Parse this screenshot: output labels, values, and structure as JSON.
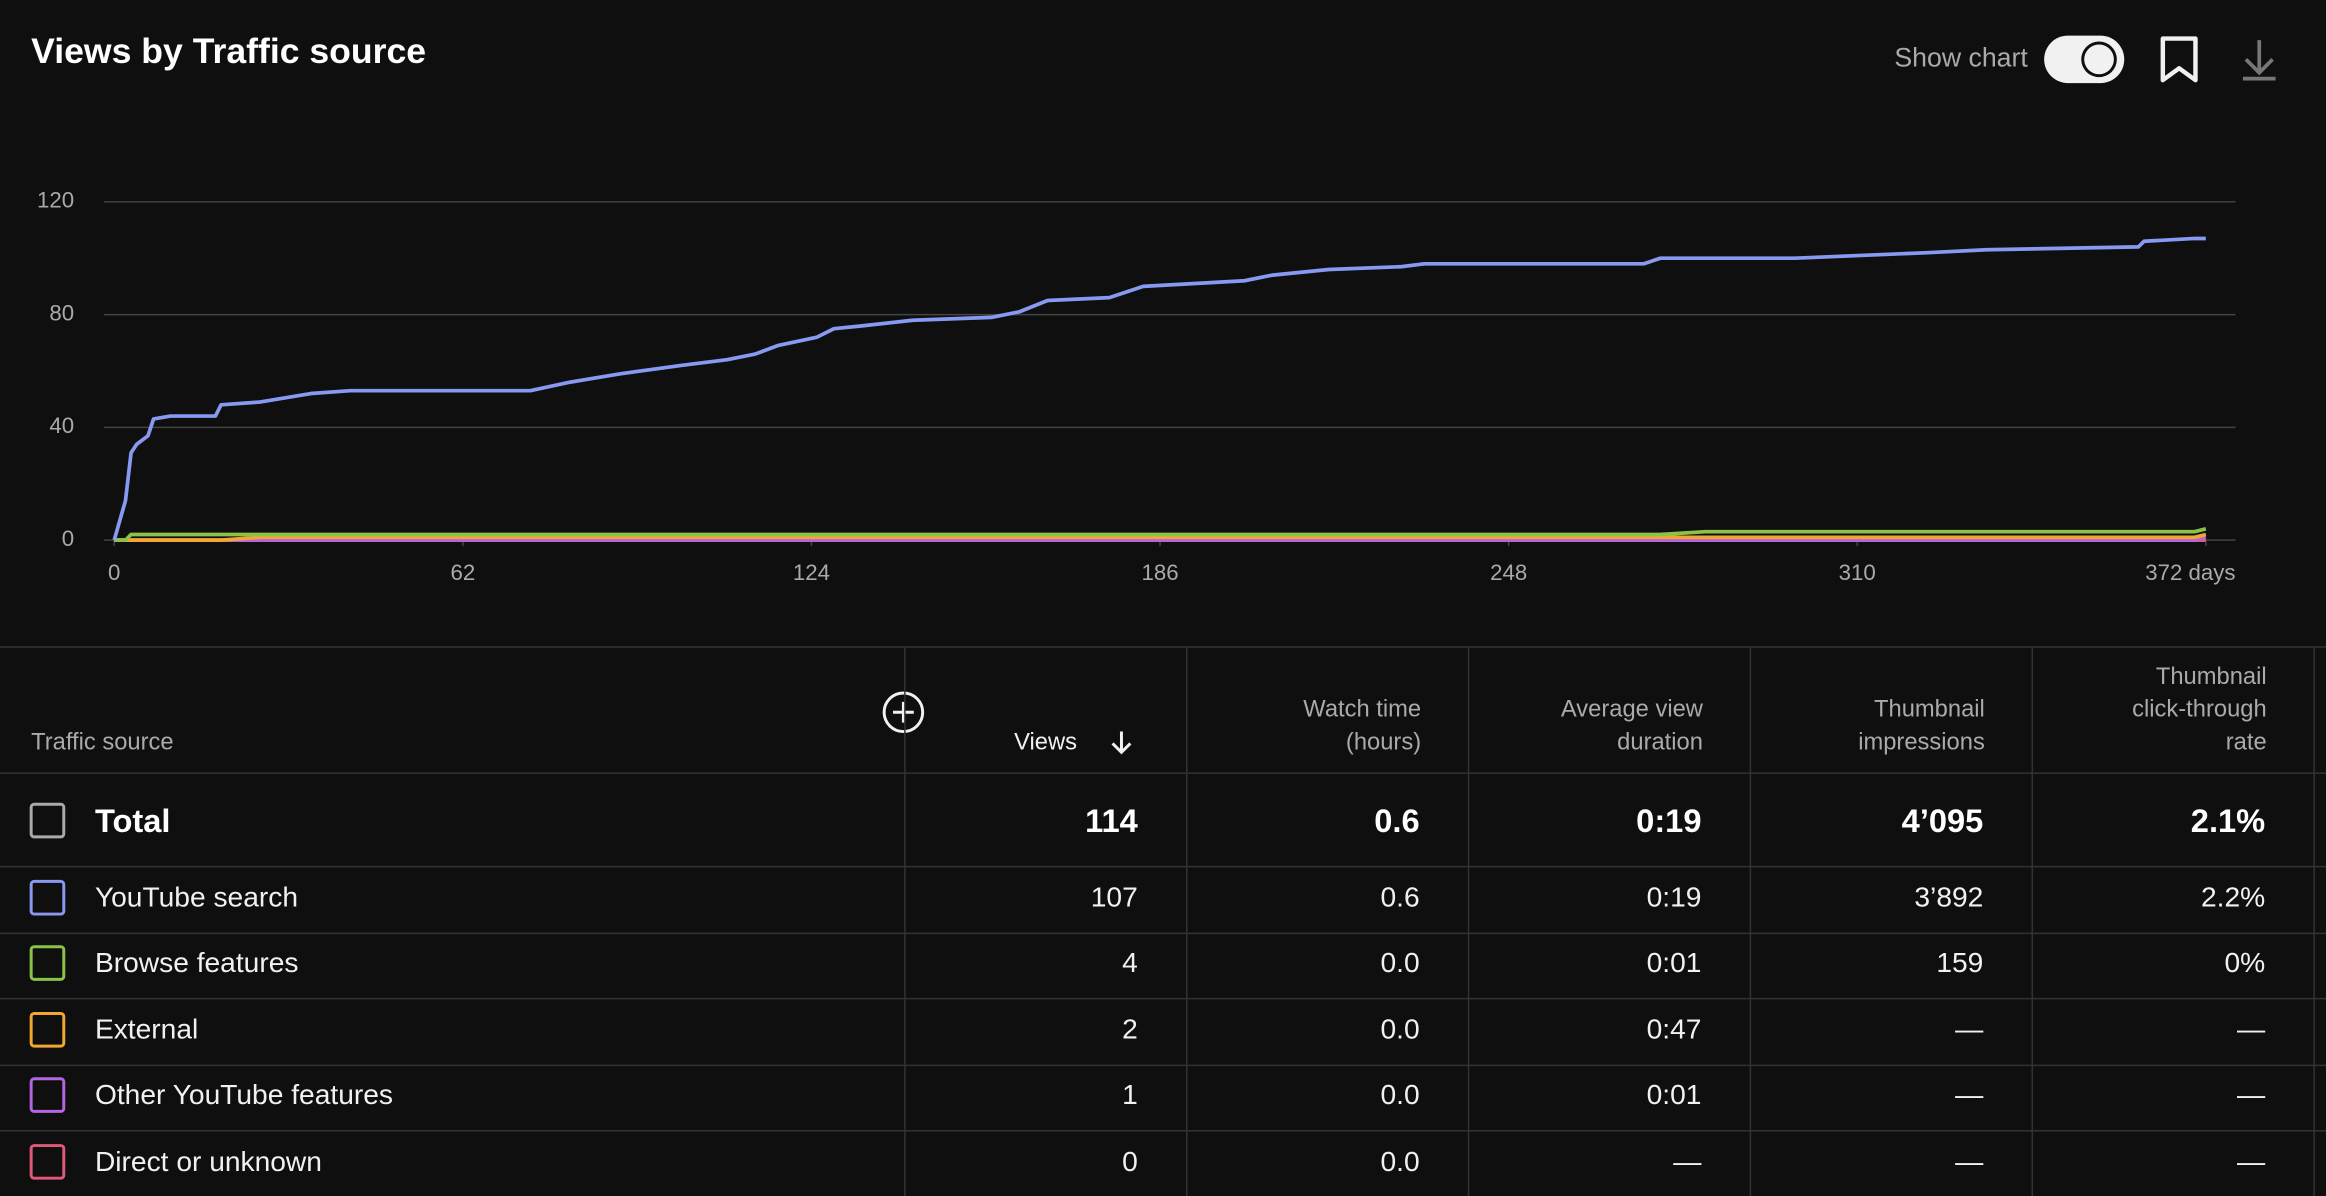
{
  "title": "Views by Traffic source",
  "controls": {
    "show_chart": "Show chart"
  },
  "chart_data": {
    "type": "line",
    "x": [
      0,
      2,
      3,
      4,
      6,
      7,
      10,
      18,
      19,
      26,
      35,
      42,
      74,
      81,
      90,
      101,
      109,
      114,
      118,
      125,
      128,
      133,
      142,
      156,
      161,
      166,
      177,
      183,
      201,
      206,
      216,
      229,
      233,
      272,
      275,
      283,
      299,
      323,
      333,
      360,
      361,
      370,
      372
    ],
    "xlim": [
      0,
      372
    ],
    "xticks": [
      0,
      62,
      124,
      186,
      248,
      310,
      {
        "value": 372,
        "label": "372 days"
      }
    ],
    "ylim": [
      0,
      120
    ],
    "yticks": [
      0,
      40,
      80,
      120
    ],
    "grid": true,
    "series": [
      {
        "name": "YouTube search",
        "color": "#8899f2",
        "values": [
          0,
          14,
          31,
          34,
          37,
          43,
          44,
          44,
          48,
          49,
          52,
          53,
          53,
          56,
          59,
          62,
          64,
          66,
          69,
          72,
          75,
          76,
          78,
          79,
          81,
          85,
          86,
          90,
          92,
          94,
          96,
          97,
          98,
          98,
          100,
          100,
          100,
          102,
          103,
          104,
          106,
          107,
          107
        ]
      },
      {
        "name": "Browse features",
        "color": "#8bc34a",
        "values": [
          0,
          0,
          2,
          2,
          2,
          2,
          2,
          2,
          2,
          2,
          2,
          2,
          2,
          2,
          2,
          2,
          2,
          2,
          2,
          2,
          2,
          2,
          2,
          2,
          2,
          2,
          2,
          2,
          2,
          2,
          2,
          2,
          2,
          2,
          2,
          3,
          3,
          3,
          3,
          3,
          3,
          3,
          4
        ]
      },
      {
        "name": "External",
        "color": "#f0a830",
        "values": [
          0,
          0,
          0,
          0,
          0,
          0,
          0,
          0,
          0,
          1,
          1,
          1,
          1,
          1,
          1,
          1,
          1,
          1,
          1,
          1,
          1,
          1,
          1,
          1,
          1,
          1,
          1,
          1,
          1,
          1,
          1,
          1,
          1,
          1,
          1,
          1,
          1,
          1,
          1,
          1,
          1,
          1,
          2
        ]
      },
      {
        "name": "Other YouTube features",
        "color": "#b565e0",
        "values": [
          0,
          0,
          0,
          0,
          0,
          0,
          0,
          0,
          0,
          0,
          0,
          0,
          0,
          0,
          0,
          0,
          0,
          0,
          0,
          0,
          0,
          0,
          0,
          0,
          0,
          0,
          0,
          0,
          0,
          0,
          0,
          0,
          0,
          0,
          0,
          0,
          0,
          0,
          0,
          0,
          0,
          0,
          1
        ]
      },
      {
        "name": "Direct or unknown",
        "color": "#e05a78",
        "values": [
          0,
          0,
          0,
          0,
          0,
          0,
          0,
          0,
          0,
          0,
          0,
          0,
          0,
          0,
          0,
          0,
          0,
          0,
          0,
          0,
          0,
          0,
          0,
          0,
          0,
          0,
          0,
          0,
          0,
          0,
          0,
          0,
          0,
          0,
          0,
          0,
          0,
          0,
          0,
          0,
          0,
          0,
          0
        ]
      }
    ]
  },
  "table": {
    "columns": [
      "Traffic source",
      "Views",
      "Watch time\n(hours)",
      "Average view\nduration",
      "Thumbnail\nimpressions",
      "Thumbnail\nclick-through\nrate"
    ],
    "total": {
      "label": "Total",
      "cells": [
        "114",
        "0.6",
        "0:19",
        "4’095",
        "2.1%"
      ]
    },
    "rows": [
      [
        "107",
        "0.6",
        "0:19",
        "3’892",
        "2.2%"
      ],
      [
        "4",
        "0.0",
        "0:01",
        "159",
        "0%"
      ],
      [
        "2",
        "0.0",
        "0:47",
        "—",
        "—"
      ],
      [
        "1",
        "0.0",
        "0:01",
        "—",
        "—"
      ],
      [
        "0",
        "0.0",
        "—",
        "—",
        "—"
      ]
    ]
  }
}
